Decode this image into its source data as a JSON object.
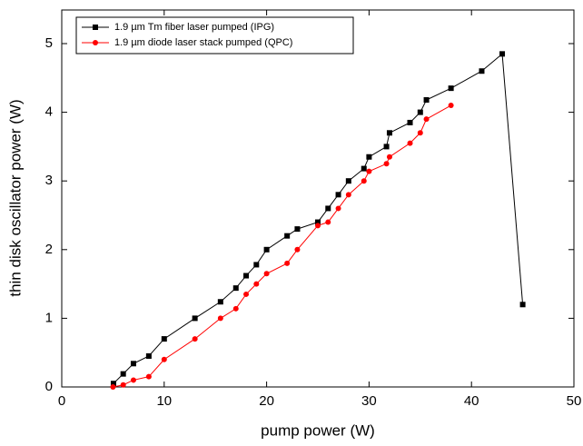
{
  "chart_data": {
    "type": "line",
    "xlabel": "pump power (W)",
    "ylabel": "thin disk oscillator power (W)",
    "xlim": [
      0,
      50
    ],
    "xticks": [
      0,
      10,
      20,
      30,
      40,
      50
    ],
    "ylim": [
      0,
      5
    ],
    "yticks": [
      0,
      1,
      2,
      3,
      4,
      5
    ],
    "legend": "upper left",
    "series": [
      {
        "name": "1.9 µm Tm fiber laser pumped (IPG)",
        "color": "#000000",
        "marker": "square",
        "x": [
          5.05,
          6,
          7,
          8.5,
          10,
          13,
          15.5,
          17,
          18,
          19,
          20,
          22,
          23,
          25,
          26,
          27,
          28,
          29.5,
          30,
          31.7,
          32,
          34,
          35,
          35.6,
          38,
          41,
          43,
          45
        ],
        "values": [
          0.05,
          0.19,
          0.34,
          0.45,
          0.7,
          1.0,
          1.24,
          1.44,
          1.62,
          1.78,
          2.0,
          2.2,
          2.3,
          2.4,
          2.6,
          2.8,
          3.0,
          3.18,
          3.35,
          3.5,
          3.7,
          3.85,
          4.0,
          4.18,
          4.35,
          4.6,
          4.85,
          1.2
        ]
      },
      {
        "name": "1.9 µm diode laser stack pumped (QPC)",
        "color": "#ff0000",
        "marker": "circle",
        "x": [
          5,
          6,
          7,
          8.5,
          10,
          13,
          15.5,
          17,
          18,
          19,
          20,
          22,
          23,
          25,
          26,
          27,
          28,
          29.5,
          30,
          31.7,
          32,
          34,
          35,
          35.6,
          38
        ],
        "values": [
          0.0,
          0.03,
          0.1,
          0.15,
          0.4,
          0.7,
          1.0,
          1.14,
          1.35,
          1.5,
          1.65,
          1.8,
          2.0,
          2.35,
          2.4,
          2.6,
          2.8,
          3.0,
          3.14,
          3.25,
          3.35,
          3.55,
          3.7,
          3.9,
          4.1
        ]
      }
    ]
  }
}
